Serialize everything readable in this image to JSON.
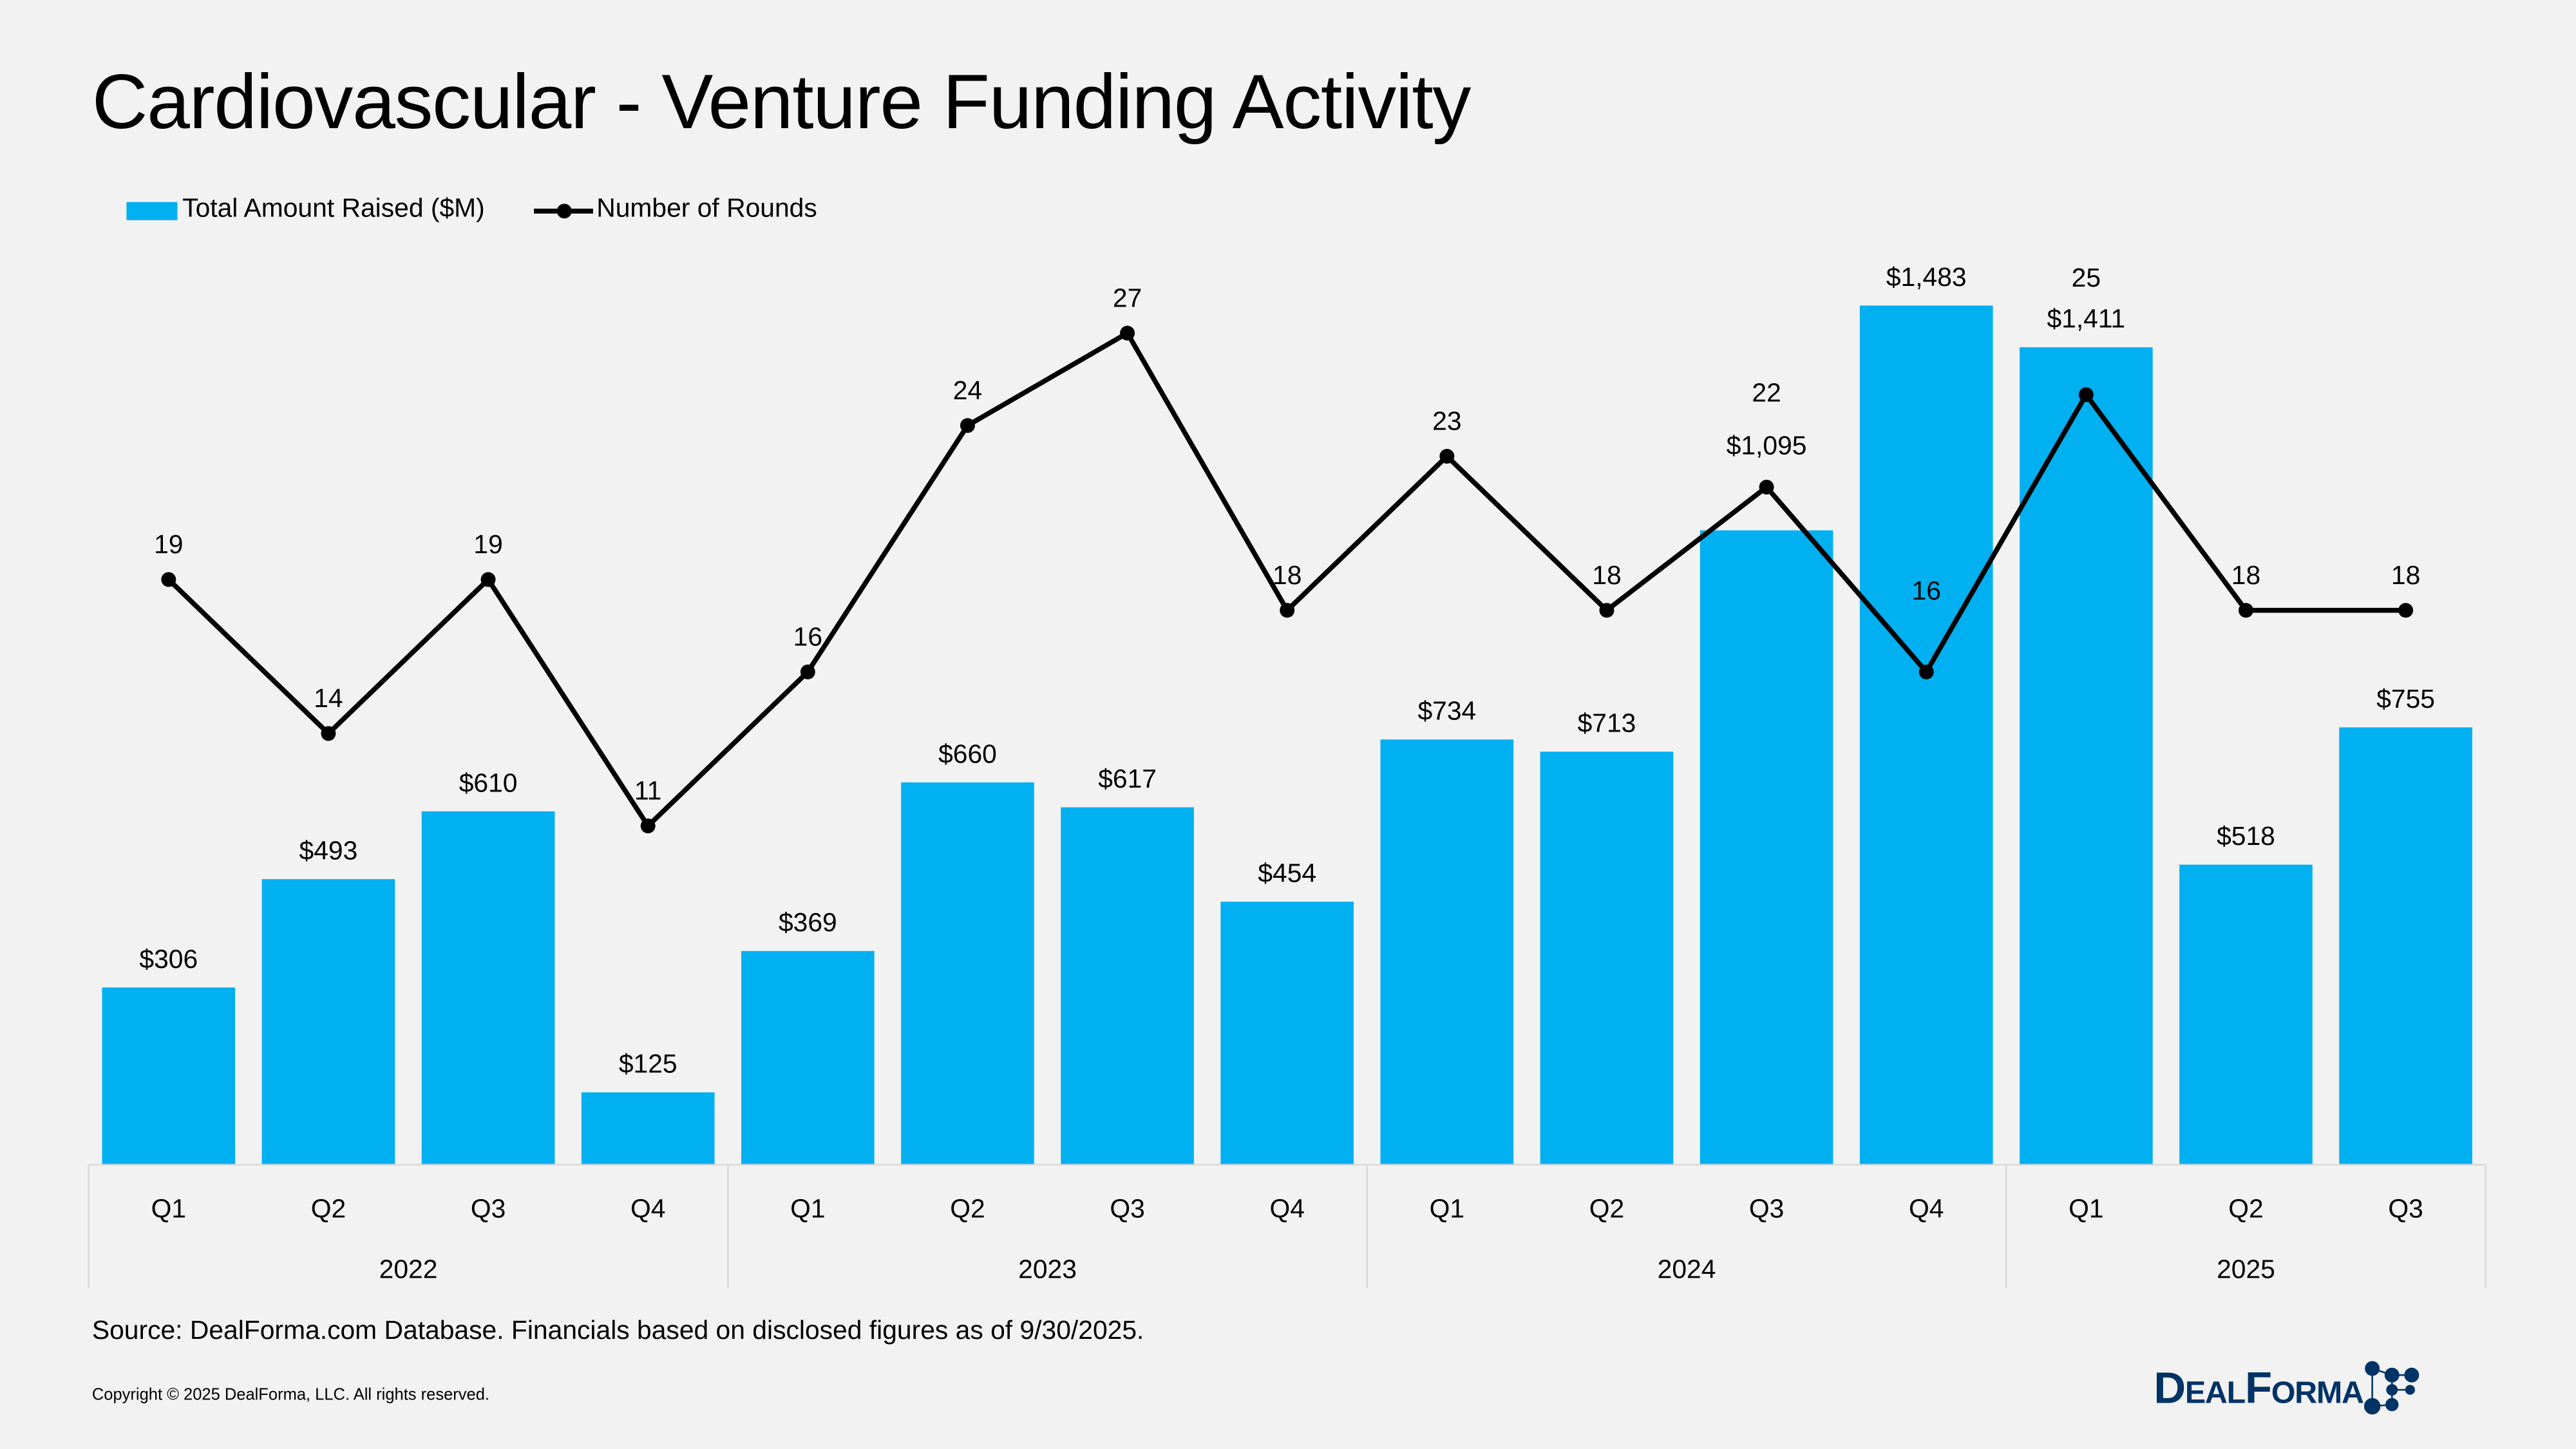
{
  "title": "Cardiovascular - Venture Funding Activity",
  "legend": {
    "bars": "Total Amount Raised ($M)",
    "line": "Number of Rounds"
  },
  "colors": {
    "bars": "#00b0f0",
    "line": "#000000",
    "logo": "#003366"
  },
  "chart_data": {
    "type": "bar+line",
    "categories": [
      "Q1",
      "Q2",
      "Q3",
      "Q4",
      "Q1",
      "Q2",
      "Q3",
      "Q4",
      "Q1",
      "Q2",
      "Q3",
      "Q4",
      "Q1",
      "Q2",
      "Q3"
    ],
    "groups": [
      {
        "label": "2022",
        "count": 4
      },
      {
        "label": "2023",
        "count": 4
      },
      {
        "label": "2024",
        "count": 4
      },
      {
        "label": "2025",
        "count": 3
      }
    ],
    "series": [
      {
        "name": "Total Amount Raised ($M)",
        "type": "bar",
        "values": [
          306,
          493,
          610,
          125,
          369,
          660,
          617,
          454,
          734,
          713,
          1095,
          1483,
          1411,
          518,
          755
        ],
        "labels": [
          "$306",
          "$493",
          "$610",
          "$125",
          "$369",
          "$660",
          "$617",
          "$454",
          "$734",
          "$713",
          "$1,095",
          "$1,483",
          "$1,411",
          "$518",
          "$755"
        ]
      },
      {
        "name": "Number of Rounds",
        "type": "line",
        "values": [
          19,
          14,
          19,
          11,
          16,
          24,
          27,
          18,
          23,
          18,
          22,
          16,
          25,
          18,
          18
        ]
      }
    ],
    "bar_axis_range": [
      0,
      1483
    ],
    "line_axis_range": [
      0,
      28
    ],
    "grid": false,
    "legend_position": "top-left"
  },
  "source": "Source: DealForma.com Database. Financials based on disclosed figures as of 9/30/2025.",
  "copyright": "Copyright © 2025 DealForma, LLC. All rights reserved.",
  "logo": "DealForma"
}
